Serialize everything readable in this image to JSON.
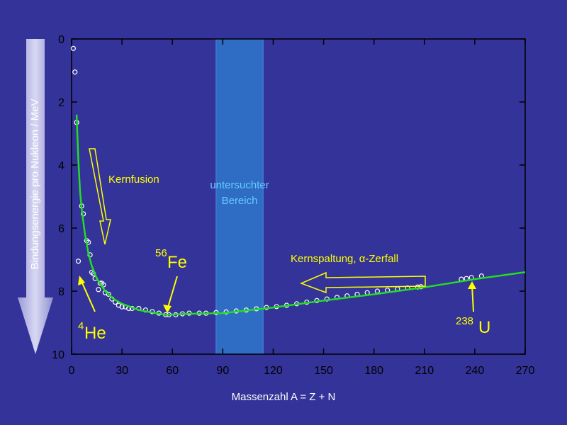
{
  "chart_data": {
    "type": "scatter",
    "x_label": "Massenzahl A = Z + N",
    "y_label": "Bindungsenergie pro Nukleon / MeV",
    "xlim": [
      0,
      270
    ],
    "ylim": [
      0,
      10
    ],
    "y_inverted": true,
    "xticks": [
      0,
      30,
      60,
      90,
      120,
      150,
      180,
      210,
      240,
      270
    ],
    "yticks": [
      0,
      2,
      4,
      6,
      8,
      10
    ],
    "highlight": {
      "range": [
        86,
        114
      ],
      "label_lines": [
        "untersuchter",
        "Bereich"
      ],
      "color": "#2f6cc4"
    },
    "series": [
      {
        "kind": "points",
        "color": "#ffffff",
        "x": [
          1,
          2,
          3,
          4,
          6,
          7,
          9,
          10,
          11,
          12,
          13,
          14,
          16,
          17,
          18,
          19,
          20,
          22,
          24,
          26,
          28,
          30,
          32,
          34,
          36,
          40,
          44,
          48,
          52,
          56,
          58,
          62,
          66,
          70,
          76,
          80,
          86,
          92,
          98,
          104,
          110,
          116,
          122,
          128,
          134,
          140,
          146,
          152,
          158,
          164,
          170,
          176,
          182,
          188,
          194,
          200,
          206,
          208,
          232,
          235,
          238,
          244
        ],
        "values": [
          0.3,
          1.05,
          2.65,
          7.05,
          5.3,
          5.55,
          6.4,
          6.45,
          6.85,
          7.4,
          7.45,
          7.6,
          7.95,
          7.75,
          7.75,
          7.8,
          8.05,
          8.1,
          8.25,
          8.35,
          8.45,
          8.5,
          8.5,
          8.55,
          8.55,
          8.55,
          8.6,
          8.65,
          8.7,
          8.75,
          8.75,
          8.75,
          8.72,
          8.7,
          8.7,
          8.7,
          8.68,
          8.66,
          8.63,
          8.6,
          8.56,
          8.52,
          8.49,
          8.45,
          8.4,
          8.35,
          8.3,
          8.25,
          8.2,
          8.15,
          8.1,
          8.05,
          8.0,
          7.97,
          7.93,
          7.9,
          7.87,
          7.86,
          7.62,
          7.6,
          7.57,
          7.52
        ]
      },
      {
        "kind": "line",
        "color": "#22dd22",
        "x": [
          3,
          4,
          5,
          6,
          8,
          10,
          12,
          15,
          20,
          25,
          30,
          40,
          50,
          56,
          70,
          90,
          120,
          150,
          180,
          210,
          240,
          270
        ],
        "values": [
          2.4,
          3.8,
          4.8,
          5.4,
          6.2,
          6.8,
          7.2,
          7.6,
          8.0,
          8.25,
          8.4,
          8.6,
          8.7,
          8.75,
          8.72,
          8.7,
          8.52,
          8.3,
          8.1,
          7.88,
          7.62,
          7.4
        ]
      }
    ],
    "annotations": {
      "fusion": "Kernfusion",
      "fission": "Kernspaltung, α-Zerfall",
      "fe_mass": "56",
      "fe_symbol": "Fe",
      "he_mass": "4",
      "he_symbol": "He",
      "u_mass": "238",
      "u_symbol": "U"
    }
  }
}
